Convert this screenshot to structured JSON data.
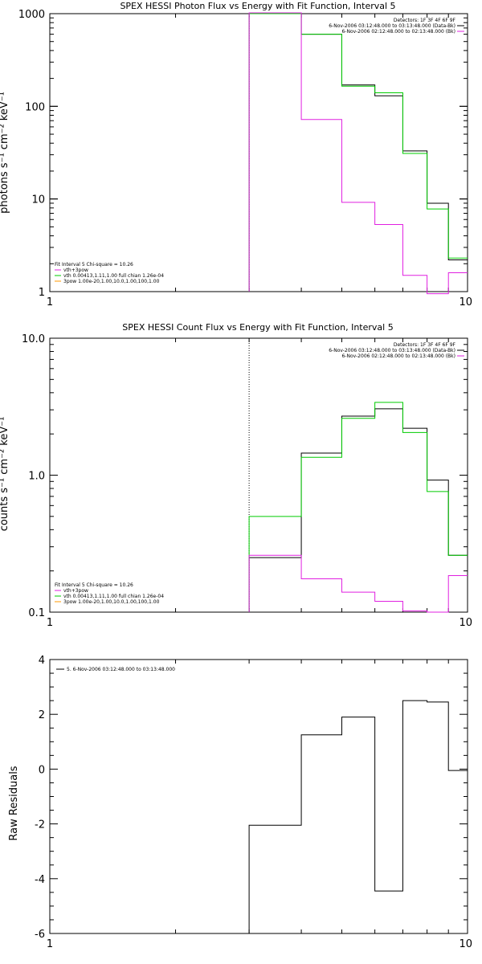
{
  "chart_data": [
    {
      "type": "line",
      "title": "SPEX HESSI Photon Flux vs Energy with Fit Function, Interval 5",
      "xlabel": "",
      "ylabel": "photons s⁻¹ cm⁻² keV⁻¹",
      "xscale": "log",
      "yscale": "log",
      "xlim": [
        1,
        10
      ],
      "ylim": [
        1,
        1000
      ],
      "x_ticks": [
        "1",
        "10"
      ],
      "y_ticks": [
        "1",
        "10",
        "100",
        "1000"
      ],
      "legend_top_right": [
        "Detectors: 1F 3F 4F 6F 9F",
        "6-Nov-2006 03:12:48.000 to 03:13:48.000 (Data-Bk)",
        "6-Nov-2006 02:12:48.000 to 02:13:48.000 (Bk)"
      ],
      "legend_bottom_left": [
        "Fit Interval  5    Chi-square = 10.26",
        "vth+3pow",
        "vth 0.00413,1.11,1.00  full chian 1.26e-04",
        "3pow 1.00e-20,1.00,10.0,1.00,100,1.00"
      ],
      "legend_colors": [
        "#000000",
        "#e020e0",
        "#00cc00",
        "#ff9900"
      ],
      "bin_edges": [
        3.0,
        3.5,
        4.0,
        4.5,
        5.0,
        5.5,
        6.0,
        6.5,
        7.0,
        7.5,
        8.0,
        8.5,
        9.0,
        9.5,
        10.0
      ],
      "series": [
        {
          "color": "#000000",
          "values": [
            1000,
            1000,
            600,
            600,
            170,
            170,
            130,
            130,
            33,
            33,
            9,
            9,
            2.2,
            2.2
          ]
        },
        {
          "color": "#00cc00",
          "values": [
            1000,
            1000,
            600,
            600,
            165,
            165,
            140,
            140,
            31,
            31,
            7.8,
            7.8,
            2.3,
            2.3
          ]
        },
        {
          "color": "#e020e0",
          "values": [
            1020,
            1020,
            72,
            72,
            9.2,
            9.2,
            5.3,
            5.3,
            1.5,
            1.5,
            0.95,
            0.95,
            1.6,
            1.6
          ]
        }
      ]
    },
    {
      "type": "line",
      "title": "SPEX HESSI Count Flux vs Energy with Fit Function, Interval 5",
      "xlabel": "",
      "ylabel": "counts s⁻¹ cm⁻² keV⁻¹",
      "xscale": "log",
      "yscale": "log",
      "xlim": [
        1,
        10
      ],
      "ylim": [
        0.1,
        10
      ],
      "x_ticks": [
        "1",
        "10"
      ],
      "y_ticks": [
        "0.1",
        "1.0",
        "10.0"
      ],
      "legend_top_right": [
        "Detectors: 1F 3F 4F 6F 9F",
        "6-Nov-2006 03:12:48.000 to 03:13:48.000 (Data-Bk)",
        "6-Nov-2006 02:12:48.000 to 02:13:48.000 (Bk)"
      ],
      "legend_bottom_left": [
        "Fit Interval  5    Chi-square = 10.26",
        "vth+3pow",
        "vth 0.00413,1.11,1.00  full chian 1.26e-04",
        "3pow 1.00e-20,1.00,10.0,1.00,100,1.00"
      ],
      "legend_colors": [
        "#000000",
        "#e020e0",
        "#00cc00",
        "#ff9900"
      ],
      "bin_edges": [
        3.0,
        3.5,
        4.0,
        4.5,
        5.0,
        5.5,
        6.0,
        6.5,
        7.0,
        7.5,
        8.0,
        8.5,
        9.0,
        9.5,
        10.0
      ],
      "series": [
        {
          "color": "#000000",
          "values": [
            0.25,
            0.25,
            1.45,
            1.45,
            2.7,
            2.7,
            3.05,
            3.05,
            2.2,
            2.2,
            0.92,
            0.92,
            0.26,
            0.26
          ]
        },
        {
          "color": "#00cc00",
          "values": [
            0.5,
            0.5,
            1.35,
            1.35,
            2.6,
            2.6,
            3.4,
            3.4,
            2.05,
            2.05,
            0.76,
            0.76,
            0.26,
            0.26
          ]
        },
        {
          "color": "#e020e0",
          "values": [
            0.26,
            0.26,
            0.175,
            0.175,
            0.14,
            0.14,
            0.12,
            0.12,
            0.102,
            0.102,
            0.1,
            0.1,
            0.185,
            0.185
          ]
        }
      ]
    },
    {
      "type": "line",
      "title": "",
      "xlabel": "",
      "ylabel": "Raw Residuals",
      "xscale": "log",
      "yscale": "linear",
      "xlim": [
        1,
        10
      ],
      "ylim": [
        -6,
        4
      ],
      "x_ticks": [
        "1",
        "10"
      ],
      "y_ticks": [
        "-6",
        "-4",
        "-2",
        "0",
        "2",
        "4"
      ],
      "legend_top_left": [
        "5.  6-Nov-2006 03:12:48.000 to 03:13:48.000"
      ],
      "bin_edges": [
        3.0,
        3.5,
        4.0,
        4.5,
        5.0,
        5.5,
        6.0,
        6.5,
        7.0,
        7.5,
        8.0,
        8.5,
        9.0,
        9.5,
        10.0
      ],
      "series": [
        {
          "color": "#000000",
          "values": [
            -2.05,
            -2.05,
            1.25,
            1.25,
            1.9,
            1.9,
            -4.45,
            -4.45,
            2.5,
            2.5,
            2.45,
            2.45,
            -0.05,
            -0.05
          ]
        }
      ]
    }
  ]
}
